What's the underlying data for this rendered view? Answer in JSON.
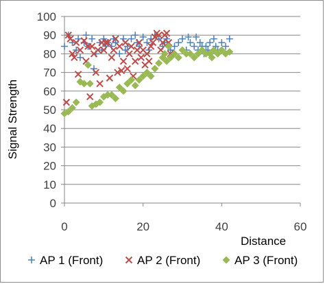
{
  "chart_data": {
    "type": "scatter",
    "title": "",
    "xlabel": "Distance",
    "ylabel": "Signal  Strength",
    "xlim": [
      0,
      60
    ],
    "ylim": [
      0,
      100
    ],
    "x_ticks": [
      0,
      20,
      40,
      60
    ],
    "y_ticks": [
      0,
      10,
      20,
      30,
      40,
      50,
      60,
      70,
      80,
      90,
      100
    ],
    "grid": "horizontal",
    "legend_position": "bottom",
    "series": [
      {
        "name": "AP 1 (Front)",
        "color": "#4a7ebb",
        "marker": "plus",
        "points": [
          [
            0,
            84
          ],
          [
            1,
            90
          ],
          [
            2,
            86
          ],
          [
            3,
            82
          ],
          [
            3.5,
            88
          ],
          [
            4,
            78
          ],
          [
            5,
            86
          ],
          [
            5.5,
            90
          ],
          [
            6,
            84
          ],
          [
            7,
            88
          ],
          [
            7.5,
            72
          ],
          [
            8,
            80
          ],
          [
            9,
            86
          ],
          [
            9.5,
            82
          ],
          [
            10,
            88
          ],
          [
            10.5,
            84
          ],
          [
            11,
            86
          ],
          [
            12,
            84
          ],
          [
            12.5,
            88
          ],
          [
            13,
            86
          ],
          [
            14,
            80
          ],
          [
            15,
            88
          ],
          [
            15.5,
            82
          ],
          [
            16,
            84
          ],
          [
            17,
            88
          ],
          [
            18,
            90
          ],
          [
            18.5,
            86
          ],
          [
            19,
            84
          ],
          [
            20,
            89
          ],
          [
            21,
            86
          ],
          [
            21.5,
            82
          ],
          [
            22,
            88
          ],
          [
            23,
            90
          ],
          [
            24,
            88
          ],
          [
            25,
            84
          ],
          [
            25.5,
            86
          ],
          [
            26,
            88
          ],
          [
            27,
            82
          ],
          [
            27.5,
            80
          ],
          [
            28,
            84
          ],
          [
            29,
            86
          ],
          [
            30,
            88
          ],
          [
            31,
            82
          ],
          [
            31.5,
            89
          ],
          [
            32,
            86
          ],
          [
            33,
            84
          ],
          [
            33.5,
            89
          ],
          [
            34,
            82
          ],
          [
            34.5,
            86
          ],
          [
            35,
            84
          ],
          [
            35.5,
            80
          ],
          [
            36,
            84
          ],
          [
            36.5,
            82
          ],
          [
            37,
            86
          ],
          [
            38,
            88
          ],
          [
            38.5,
            84
          ],
          [
            39,
            82
          ],
          [
            40,
            86
          ],
          [
            41,
            84
          ],
          [
            42,
            88
          ]
        ]
      },
      {
        "name": "AP 2 (Front)",
        "color": "#be4b48",
        "marker": "x",
        "points": [
          [
            0.5,
            54
          ],
          [
            1,
            90
          ],
          [
            1.5,
            88
          ],
          [
            2,
            80
          ],
          [
            2.5,
            78
          ],
          [
            3,
            86
          ],
          [
            3.5,
            69
          ],
          [
            4,
            82
          ],
          [
            5,
            87
          ],
          [
            5.5,
            76
          ],
          [
            6,
            84
          ],
          [
            6.5,
            57
          ],
          [
            7,
            84
          ],
          [
            7.5,
            80
          ],
          [
            8,
            70
          ],
          [
            8.5,
            82
          ],
          [
            9,
            64
          ],
          [
            9.5,
            86
          ],
          [
            10,
            82
          ],
          [
            10.5,
            86
          ],
          [
            11,
            86
          ],
          [
            11.5,
            67
          ],
          [
            12,
            78
          ],
          [
            12.5,
            82
          ],
          [
            13,
            88
          ],
          [
            13.5,
            70
          ],
          [
            14,
            84
          ],
          [
            14.5,
            71
          ],
          [
            15,
            76
          ],
          [
            15.5,
            86
          ],
          [
            16,
            72
          ],
          [
            16.5,
            80
          ],
          [
            17,
            84
          ],
          [
            17.5,
            68
          ],
          [
            18,
            76
          ],
          [
            18.5,
            82
          ],
          [
            19,
            86
          ],
          [
            19.5,
            78
          ],
          [
            20,
            82
          ],
          [
            20.5,
            74
          ],
          [
            21,
            80
          ],
          [
            21.5,
            76
          ],
          [
            22,
            84
          ],
          [
            22.5,
            86
          ],
          [
            23,
            89
          ],
          [
            23.5,
            91
          ],
          [
            24,
            90
          ],
          [
            24.5,
            82
          ],
          [
            25,
            86
          ],
          [
            25.5,
            90
          ],
          [
            26,
            91
          ],
          [
            26.5,
            86
          ],
          [
            27,
            80
          ]
        ]
      },
      {
        "name": "AP 3 (Front)",
        "color": "#98b954",
        "marker": "diamond",
        "points": [
          [
            0,
            48
          ],
          [
            1,
            49
          ],
          [
            2,
            51
          ],
          [
            3,
            54
          ],
          [
            4,
            65
          ],
          [
            5,
            64
          ],
          [
            6,
            74
          ],
          [
            6.5,
            64
          ],
          [
            7,
            52
          ],
          [
            8,
            53
          ],
          [
            9,
            54
          ],
          [
            10,
            57
          ],
          [
            11,
            58
          ],
          [
            12,
            58
          ],
          [
            13,
            56
          ],
          [
            14,
            62
          ],
          [
            15,
            60
          ],
          [
            16,
            64
          ],
          [
            17,
            66
          ],
          [
            18,
            63
          ],
          [
            19,
            66
          ],
          [
            20,
            68
          ],
          [
            21,
            70
          ],
          [
            22,
            68
          ],
          [
            23,
            72
          ],
          [
            24,
            75
          ],
          [
            25,
            78
          ],
          [
            25.5,
            80
          ],
          [
            26,
            76
          ],
          [
            26.5,
            84
          ],
          [
            27,
            78
          ],
          [
            28,
            80
          ],
          [
            29,
            78
          ],
          [
            30,
            82
          ],
          [
            31,
            80
          ],
          [
            32,
            80
          ],
          [
            33,
            78
          ],
          [
            34,
            80
          ],
          [
            35,
            82
          ],
          [
            36,
            80
          ],
          [
            37,
            80
          ],
          [
            37.5,
            78
          ],
          [
            38,
            82
          ],
          [
            39,
            80
          ],
          [
            40,
            82
          ],
          [
            41,
            80
          ],
          [
            42,
            81
          ]
        ]
      }
    ]
  }
}
